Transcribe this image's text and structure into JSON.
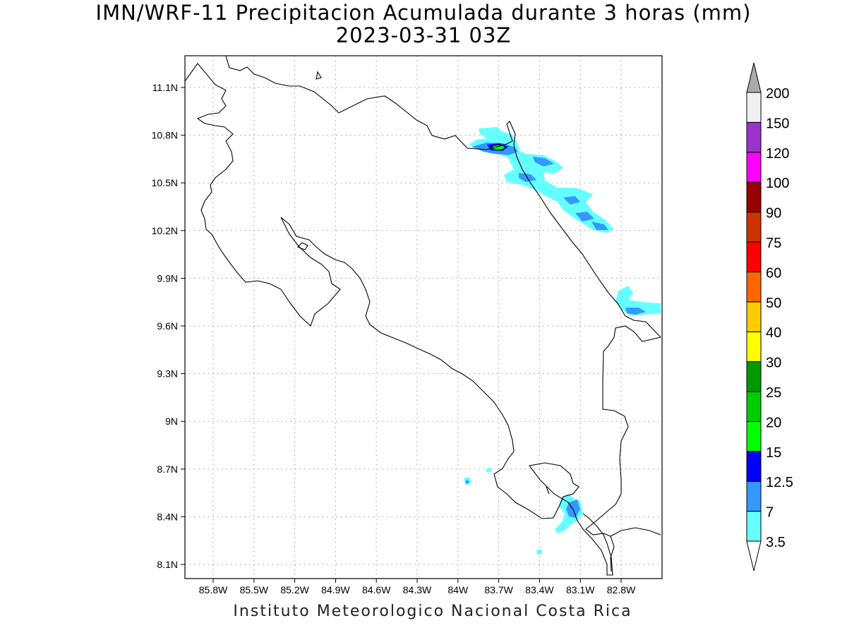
{
  "header": {
    "title": "IMN/WRF-11 Precipitacion Acumulada durante 3 horas (mm)",
    "subtitle": "2023-03-31 03Z"
  },
  "footer": {
    "credit": "Instituto Meteorologico Nacional Costa Rica"
  },
  "map": {
    "lon_labels": [
      "85.8W",
      "85.5W",
      "85.2W",
      "84.9W",
      "84.6W",
      "84.3W",
      "84W",
      "83.7W",
      "83.4W",
      "83.1W",
      "82.8W"
    ],
    "lat_labels": [
      "11.1N",
      "10.8N",
      "10.5N",
      "10.2N",
      "9.9N",
      "9.6N",
      "9.3N",
      "9N",
      "8.7N",
      "8.4N",
      "8.1N"
    ],
    "gridlines": "dotted",
    "coastline_color": "#000000"
  },
  "colorbar": {
    "unit": "mm",
    "levels": [
      {
        "label": "3.5",
        "color": "#66ffff"
      },
      {
        "label": "7",
        "color": "#3399ff"
      },
      {
        "label": "12.5",
        "color": "#0000ff"
      },
      {
        "label": "15",
        "color": "#00ff00"
      },
      {
        "label": "20",
        "color": "#00cc00"
      },
      {
        "label": "25",
        "color": "#009900"
      },
      {
        "label": "30",
        "color": "#ffff00"
      },
      {
        "label": "40",
        "color": "#ffcc00"
      },
      {
        "label": "50",
        "color": "#ff6600"
      },
      {
        "label": "60",
        "color": "#ff0000"
      },
      {
        "label": "75",
        "color": "#cc3300"
      },
      {
        "label": "90",
        "color": "#990000"
      },
      {
        "label": "100",
        "color": "#ff00ff"
      },
      {
        "label": "120",
        "color": "#9933cc"
      },
      {
        "label": "150",
        "color": "#f0f0f0"
      },
      {
        "label": "200",
        "color": "#aaaaaa"
      }
    ],
    "under_color": "#ffffff",
    "over_color": "#aaaaaa"
  }
}
